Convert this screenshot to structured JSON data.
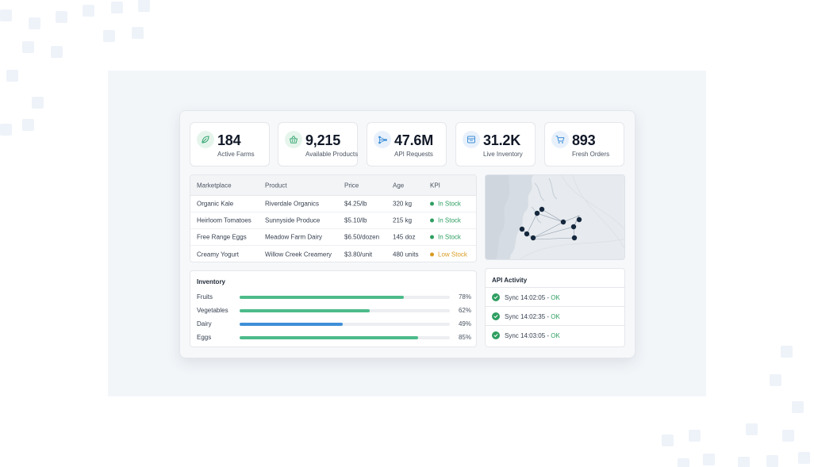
{
  "kpis": [
    {
      "value": "184",
      "label": "Active Farms",
      "icon": "leaf-icon"
    },
    {
      "value": "9,215",
      "label": "Available Products",
      "icon": "basket-icon"
    },
    {
      "value": "47.6M",
      "label": "API Requests",
      "icon": "network-icon"
    },
    {
      "value": "31.2K",
      "label": "Live Inventory",
      "icon": "box-icon"
    },
    {
      "value": "893",
      "label": "Fresh Orders",
      "icon": "cart-icon"
    }
  ],
  "table": {
    "headers": [
      "Marketplace",
      "Product",
      "Price",
      "Age",
      "KPI"
    ],
    "rows": [
      {
        "marketplace": "Organic Kale",
        "product": "Riverdale Organics",
        "price": "$4.25/lb",
        "age": "320 kg",
        "kpi": "In Stock"
      },
      {
        "marketplace": "Heirloom Tomatoes",
        "product": "Sunnyside Produce",
        "price": "$5.10/lb",
        "age": "215 kg",
        "kpi": "In Stock"
      },
      {
        "marketplace": "Free Range Eggs",
        "product": "Meadow Farm Dairy",
        "price": "$6.50/dozen",
        "age": "145 doz",
        "kpi": "In Stock"
      },
      {
        "marketplace": "Creamy Yogurt",
        "product": "Willow Creek Creamery",
        "price": "$3.80/unit",
        "age": "480 units",
        "kpi": "Low Stock"
      }
    ]
  },
  "inventory": {
    "title": "Inventory",
    "items": [
      {
        "name": "Fruits",
        "pct_label": "78%",
        "fraction": 0.78,
        "color": "#4dbb8a"
      },
      {
        "name": "Vegetables",
        "pct_label": "62%",
        "fraction": 0.62,
        "color": "#4dbb8a"
      },
      {
        "name": "Dairy",
        "pct_label": "49%",
        "fraction": 0.49,
        "color": "#3f8fd8"
      },
      {
        "name": "Eggs",
        "pct_label": "85%",
        "fraction": 0.85,
        "color": "#4dbb8a"
      }
    ]
  },
  "api_activity": {
    "title": "API Activity",
    "entries": [
      {
        "label": "Sync 14:02:05 - ",
        "status": "OK"
      },
      {
        "label": "Sync 14:02:35 - ",
        "status": "OK"
      },
      {
        "label": "Sync 14:03:05 - ",
        "status": "OK"
      }
    ]
  },
  "colors": {
    "in_stock": "#2e9e61",
    "low_stock": "#d99a22",
    "map_node": "#15273d",
    "accent_green": "#4dbb8a",
    "accent_blue": "#3f8fd8"
  },
  "map": {
    "icon": "map-network-icon"
  }
}
